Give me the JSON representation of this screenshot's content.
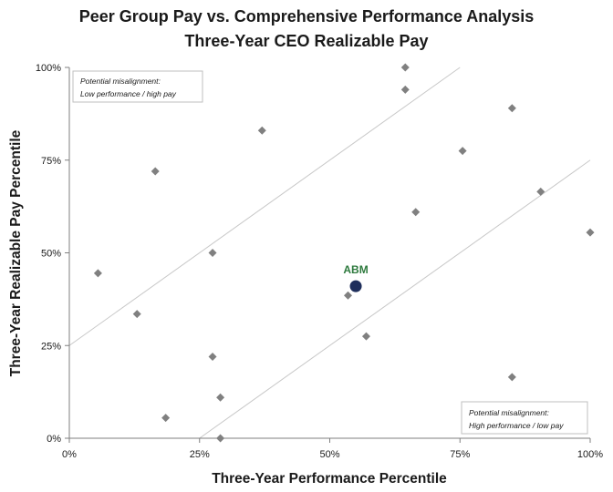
{
  "chart_data": {
    "type": "scatter",
    "title": "Peer Group Pay vs. Comprehensive Performance Analysis",
    "subtitle": "Three-Year CEO Realizable Pay",
    "xlabel": "Three-Year Performance Percentile",
    "ylabel": "Three-Year Realizable Pay Percentile",
    "xlim": [
      0,
      100
    ],
    "ylim": [
      0,
      100
    ],
    "xticks": [
      0,
      25,
      50,
      75,
      100
    ],
    "yticks": [
      0,
      25,
      50,
      75,
      100
    ],
    "xtick_labels": [
      "0%",
      "25%",
      "50%",
      "75%",
      "100%"
    ],
    "ytick_labels": [
      "0%",
      "25%",
      "50%",
      "75%",
      "100%"
    ],
    "grid": false,
    "colors": {
      "peer": "#808080",
      "highlight": "#1f2f5c",
      "highlight_label": "#2e7a3e",
      "band": "#c8c8c8",
      "axis": "#7f7f7f"
    },
    "band_lines": [
      {
        "x": [
          0,
          75
        ],
        "y": [
          25,
          100
        ]
      },
      {
        "x": [
          25,
          100
        ],
        "y": [
          0,
          75
        ]
      }
    ],
    "series": [
      {
        "name": "Peers",
        "x": [
          5.5,
          13,
          16.5,
          18.5,
          27.5,
          27.5,
          29,
          29,
          37,
          53.5,
          57,
          64.5,
          64.5,
          66.5,
          75.5,
          85,
          85,
          90.5,
          100
        ],
        "y": [
          44.5,
          33.5,
          72,
          5.5,
          50,
          22,
          11,
          0,
          83,
          38.5,
          27.5,
          100,
          94,
          61,
          77.5,
          89,
          16.5,
          66.5,
          55.5
        ]
      }
    ],
    "highlight": {
      "label": "ABM",
      "x": 55,
      "y": 41
    },
    "annotations": [
      {
        "lines": [
          "Potential misalignment:",
          "Low performance / high pay"
        ],
        "position": "top-left"
      },
      {
        "lines": [
          "Potential misalignment:",
          "High performance / low pay"
        ],
        "position": "bottom-right"
      }
    ]
  }
}
